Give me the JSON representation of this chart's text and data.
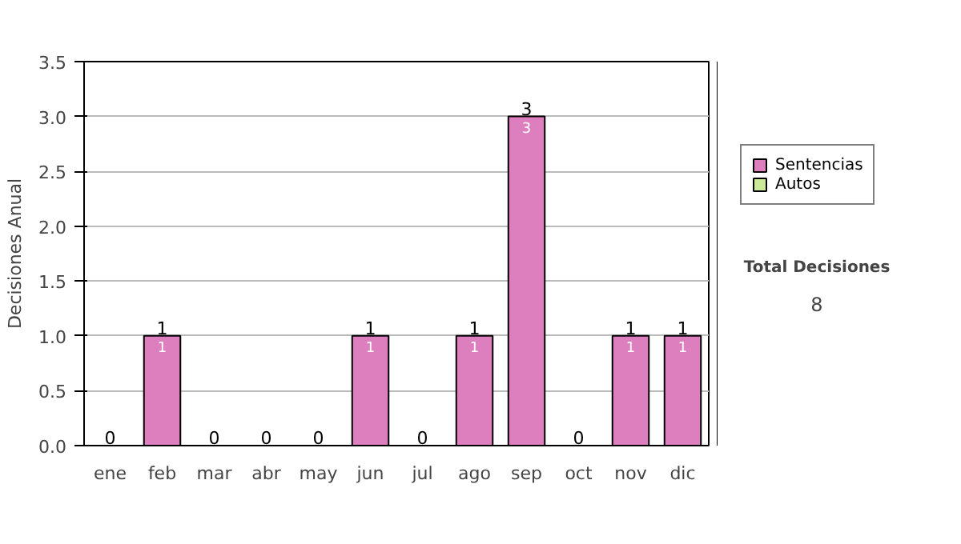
{
  "chart_data": {
    "type": "bar",
    "stacked": true,
    "ylabel": "Decisiones Anual",
    "categories": [
      "ene",
      "feb",
      "mar",
      "abr",
      "may",
      "jun",
      "jul",
      "ago",
      "sep",
      "oct",
      "nov",
      "dic"
    ],
    "series": [
      {
        "name": "Sentencias",
        "color": "#dd7fbf",
        "values": [
          0,
          1,
          0,
          0,
          0,
          1,
          0,
          1,
          3,
          0,
          1,
          1
        ],
        "value_labels": [
          null,
          "1",
          null,
          null,
          null,
          "1",
          null,
          "1",
          "3",
          null,
          "1",
          "1"
        ]
      },
      {
        "name": "Autos",
        "color": "#cce899",
        "values": [
          0,
          0,
          0,
          0,
          0,
          0,
          0,
          0,
          0,
          0,
          0,
          0
        ]
      }
    ],
    "totals": [
      "0",
      "1",
      "0",
      "0",
      "0",
      "1",
      "0",
      "1",
      "3",
      "0",
      "1",
      "1"
    ],
    "ylim": [
      0,
      3.5
    ],
    "yticks": [
      {
        "value": 0,
        "label": "0.0"
      },
      {
        "value": 0.5,
        "label": "0.5"
      },
      {
        "value": 1,
        "label": "1.0"
      },
      {
        "value": 1.5,
        "label": "1.5"
      },
      {
        "value": 2,
        "label": "2.0"
      },
      {
        "value": 2.5,
        "label": "2.5"
      },
      {
        "value": 3,
        "label": "3.0"
      },
      {
        "value": 3.5,
        "label": "3.5"
      }
    ],
    "grid": "y",
    "legend": "right",
    "annotations": [
      "Total Decisiones",
      "8"
    ]
  }
}
